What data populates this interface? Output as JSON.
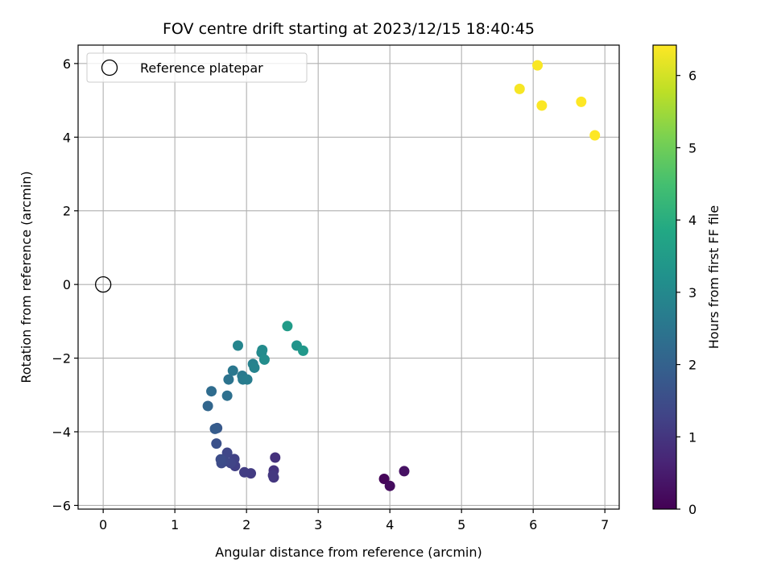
{
  "chart_data": {
    "type": "scatter",
    "title": "FOV centre drift starting at 2023/12/15 18:40:45",
    "xlabel": "Angular distance from reference (arcmin)",
    "ylabel": "Rotation from reference (arcmin)",
    "xlim": [
      -0.35,
      7.2
    ],
    "ylim": [
      -6.1,
      6.5
    ],
    "xticks": [
      0,
      1,
      2,
      3,
      4,
      5,
      6,
      7
    ],
    "xtick_labels": [
      "0",
      "1",
      "2",
      "3",
      "4",
      "5",
      "6",
      "7"
    ],
    "yticks": [
      -6,
      -4,
      -2,
      0,
      2,
      4,
      6
    ],
    "ytick_labels": [
      "−6",
      "−4",
      "−2",
      "0",
      "2",
      "4",
      "6"
    ],
    "grid": true,
    "legend": {
      "placement": "upper-left",
      "entries": [
        {
          "label": "Reference platepar",
          "marker": "open-circle"
        }
      ]
    },
    "reference_point": {
      "x": 0,
      "y": 0
    },
    "colorbar": {
      "label": "Hours from first FF file",
      "colormap": "viridis",
      "range": [
        0,
        6.42
      ],
      "ticks": [
        0,
        1,
        2,
        3,
        4,
        5,
        6
      ],
      "tick_labels": [
        "0",
        "1",
        "2",
        "3",
        "4",
        "5",
        "6"
      ]
    },
    "points": [
      {
        "x": 3.92,
        "y": -5.28,
        "c": 0.1
      },
      {
        "x": 4.0,
        "y": -5.47,
        "c": 0.2
      },
      {
        "x": 4.2,
        "y": -5.07,
        "c": 0.3
      },
      {
        "x": 2.4,
        "y": -4.7,
        "c": 0.9
      },
      {
        "x": 2.38,
        "y": -5.05,
        "c": 0.95
      },
      {
        "x": 2.38,
        "y": -5.24,
        "c": 1.0
      },
      {
        "x": 2.37,
        "y": -5.18,
        "c": 1.05
      },
      {
        "x": 2.06,
        "y": -5.13,
        "c": 1.1
      },
      {
        "x": 1.97,
        "y": -5.1,
        "c": 1.15
      },
      {
        "x": 1.84,
        "y": -4.93,
        "c": 1.2
      },
      {
        "x": 1.83,
        "y": -4.74,
        "c": 1.25
      },
      {
        "x": 1.78,
        "y": -4.85,
        "c": 1.3
      },
      {
        "x": 1.73,
        "y": -4.57,
        "c": 1.35
      },
      {
        "x": 1.7,
        "y": -4.8,
        "c": 1.4
      },
      {
        "x": 1.65,
        "y": -4.85,
        "c": 1.45
      },
      {
        "x": 1.64,
        "y": -4.75,
        "c": 1.5
      },
      {
        "x": 1.58,
        "y": -4.32,
        "c": 1.6
      },
      {
        "x": 1.59,
        "y": -3.9,
        "c": 1.75
      },
      {
        "x": 1.56,
        "y": -3.92,
        "c": 1.85
      },
      {
        "x": 1.46,
        "y": -3.3,
        "c": 2.1
      },
      {
        "x": 1.51,
        "y": -2.9,
        "c": 2.25
      },
      {
        "x": 1.73,
        "y": -3.02,
        "c": 2.35
      },
      {
        "x": 1.75,
        "y": -2.58,
        "c": 2.45
      },
      {
        "x": 1.81,
        "y": -2.34,
        "c": 2.55
      },
      {
        "x": 1.94,
        "y": -2.48,
        "c": 2.6
      },
      {
        "x": 1.95,
        "y": -2.58,
        "c": 2.65
      },
      {
        "x": 2.01,
        "y": -2.58,
        "c": 2.7
      },
      {
        "x": 2.09,
        "y": -2.16,
        "c": 2.8
      },
      {
        "x": 2.11,
        "y": -2.26,
        "c": 2.85
      },
      {
        "x": 1.88,
        "y": -1.66,
        "c": 2.9
      },
      {
        "x": 2.21,
        "y": -1.85,
        "c": 3.0
      },
      {
        "x": 2.22,
        "y": -1.78,
        "c": 3.05
      },
      {
        "x": 2.25,
        "y": -2.04,
        "c": 3.1
      },
      {
        "x": 2.7,
        "y": -1.66,
        "c": 3.3
      },
      {
        "x": 2.79,
        "y": -1.8,
        "c": 3.4
      },
      {
        "x": 2.57,
        "y": -1.13,
        "c": 3.5
      },
      {
        "x": 5.81,
        "y": 5.31,
        "c": 6.35
      },
      {
        "x": 6.06,
        "y": 5.95,
        "c": 6.38
      },
      {
        "x": 6.12,
        "y": 4.86,
        "c": 6.4
      },
      {
        "x": 6.67,
        "y": 4.96,
        "c": 6.42
      },
      {
        "x": 6.86,
        "y": 4.05,
        "c": 6.42
      }
    ]
  }
}
